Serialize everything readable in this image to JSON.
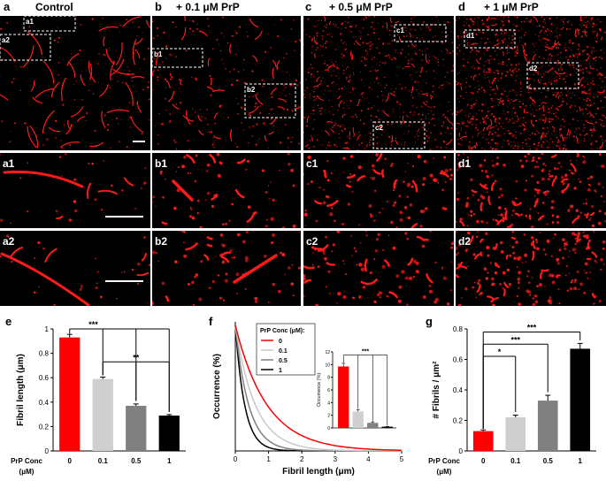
{
  "figure": {
    "top_row": [
      {
        "letter": "a",
        "title": "Control",
        "boxes": [
          "a1",
          "a2"
        ]
      },
      {
        "letter": "b",
        "title": "+ 0.1 μM PrP",
        "boxes": [
          "b1",
          "b2"
        ]
      },
      {
        "letter": "c",
        "title": "+ 0.5 μM PrP",
        "boxes": [
          "c1",
          "c2"
        ]
      },
      {
        "letter": "d",
        "title": "+ 1 μM PrP",
        "boxes": [
          "d1",
          "d2"
        ]
      }
    ],
    "zoom_rows": [
      [
        "a1",
        "b1",
        "c1",
        "d1"
      ],
      [
        "a2",
        "b2",
        "c2",
        "d2"
      ]
    ],
    "colors": {
      "fibril": "#ff1a1a",
      "background": "#000000"
    }
  },
  "chart_data": [
    {
      "panel": "e",
      "type": "bar",
      "ylabel": "Fibril length (μm)",
      "xlabel_line1": "PrP Conc",
      "xlabel_line2": "(μM)",
      "categories": [
        "0",
        "0.1",
        "0.5",
        "1"
      ],
      "values": [
        0.93,
        0.59,
        0.37,
        0.29
      ],
      "errors": [
        0.025,
        0.015,
        0.015,
        0.008
      ],
      "colors": [
        "#ff0000",
        "#cfcfcf",
        "#808080",
        "#000000"
      ],
      "ylim": [
        0,
        1
      ],
      "yticks": [
        "0",
        "0.2",
        "0.4",
        "0.6",
        "0.8",
        "1"
      ],
      "significance": [
        "***",
        "**"
      ]
    },
    {
      "panel": "f",
      "type": "line",
      "xlabel": "Fibril length (μm)",
      "ylabel": "Occurrence (%)",
      "xticks": [
        "0",
        "1",
        "2",
        "3",
        "4",
        "5"
      ],
      "xlim": [
        0,
        5
      ],
      "legend_title": "PrP Conc (μM):",
      "series": [
        {
          "name": "0",
          "color": "#ff0000",
          "decay": 0.95
        },
        {
          "name": "0.1",
          "color": "#c8c8c8",
          "decay": 0.6
        },
        {
          "name": "0.5",
          "color": "#808080",
          "decay": 0.4
        },
        {
          "name": "1",
          "color": "#000000",
          "decay": 0.28
        }
      ],
      "inset": {
        "type": "bar",
        "ylabel": "Occurrence (%)",
        "yticks": [
          "0",
          "2",
          "4",
          "6",
          "8",
          "10",
          "12"
        ],
        "ylim": [
          0,
          12
        ],
        "values": [
          9.7,
          2.6,
          0.8,
          0.2
        ],
        "errors": [
          0.5,
          0.3,
          0.15,
          0.05
        ],
        "colors": [
          "#ff0000",
          "#cfcfcf",
          "#808080",
          "#000000"
        ],
        "significance": "***"
      }
    },
    {
      "panel": "g",
      "type": "bar",
      "ylabel": "# Fibrils / μm²",
      "xlabel_line1": "PrP Conc",
      "xlabel_line2": "(μM)",
      "categories": [
        "0",
        "0.1",
        "0.5",
        "1"
      ],
      "values": [
        0.13,
        0.22,
        0.33,
        0.67
      ],
      "errors": [
        0.008,
        0.015,
        0.035,
        0.035
      ],
      "colors": [
        "#ff0000",
        "#cfcfcf",
        "#808080",
        "#000000"
      ],
      "ylim": [
        0,
        0.8
      ],
      "yticks": [
        "0",
        "0.2",
        "0.4",
        "0.6",
        "0.8"
      ],
      "significance": [
        "*",
        "***",
        "***"
      ]
    }
  ]
}
